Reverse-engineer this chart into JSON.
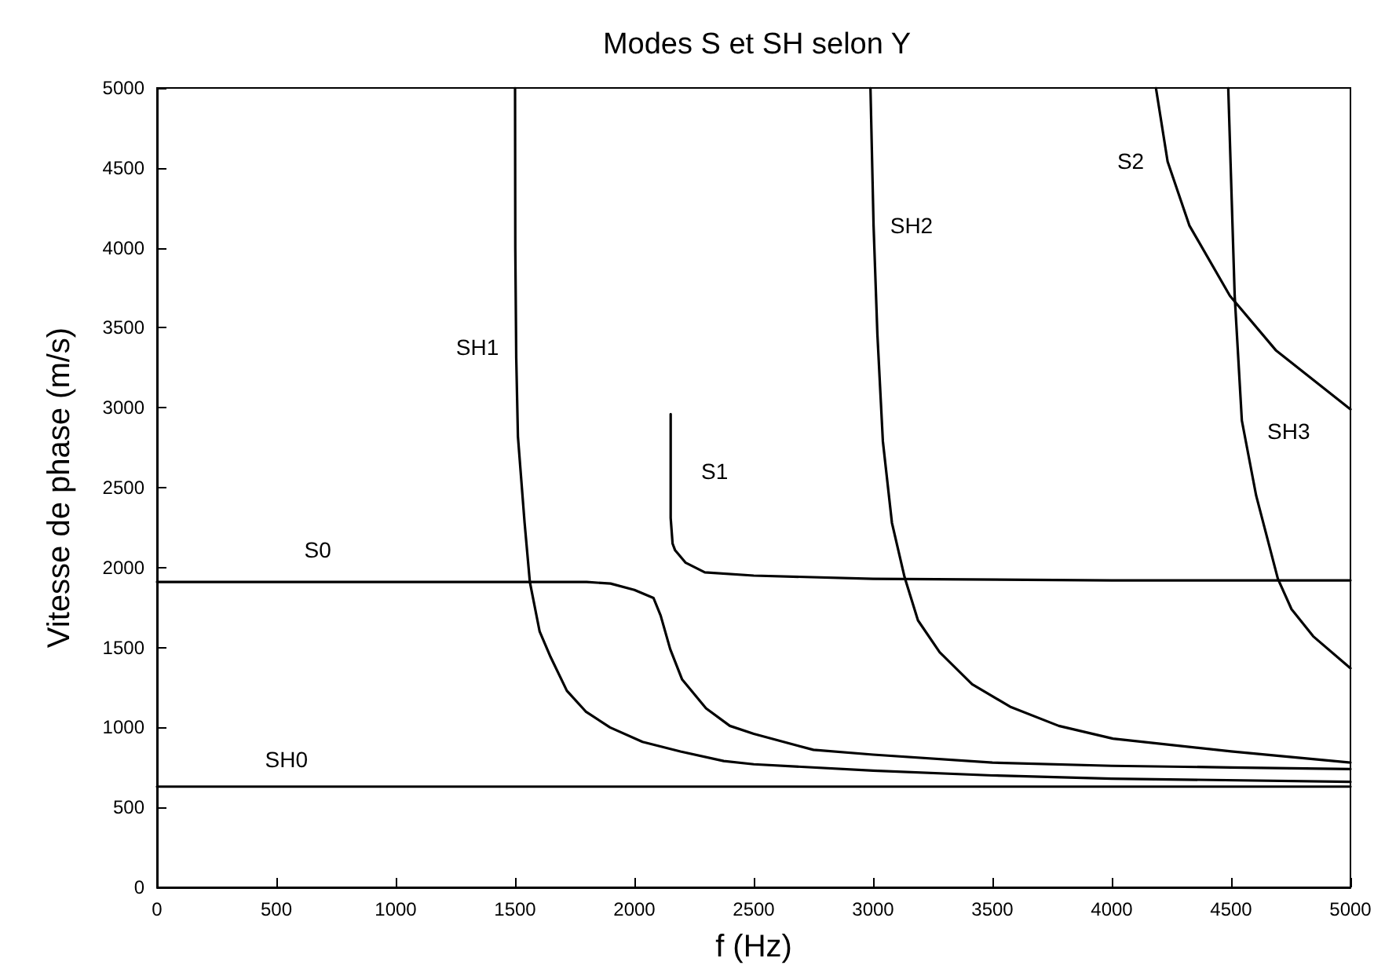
{
  "chart_data": {
    "type": "line",
    "title": "Modes S et SH selon Y",
    "xlabel": "f (Hz)",
    "ylabel": "Vitesse de phase (m/s)",
    "xlim": [
      0,
      5000
    ],
    "xticks": [
      0,
      500,
      1000,
      1500,
      2000,
      2500,
      3000,
      3500,
      4000,
      4500,
      5000
    ],
    "ylim": [
      0,
      5000
    ],
    "yticks": [
      0,
      500,
      1000,
      1500,
      2000,
      2500,
      3000,
      3500,
      4000,
      4500,
      5000
    ],
    "grid": false,
    "marker": "none",
    "line_style": "solid",
    "series": [
      {
        "name": "SH0",
        "color": "#000000",
        "x": [
          0,
          5000
        ],
        "values": [
          630,
          630
        ]
      },
      {
        "name": "S0",
        "color": "#000000",
        "x": [
          0,
          1800,
          1900,
          2000,
          2080,
          2110,
          2150,
          2200,
          2300,
          2400,
          2500,
          2750,
          3000,
          3500,
          4000,
          4500,
          5000
        ],
        "values": [
          1910,
          1910,
          1900,
          1860,
          1810,
          1700,
          1490,
          1300,
          1120,
          1010,
          960,
          860,
          830,
          780,
          760,
          750,
          740
        ]
      },
      {
        "name": "SH1",
        "color": "#000000",
        "x": [
          1500,
          1501,
          1505,
          1512,
          1540,
          1562,
          1603,
          1649,
          1717,
          1796,
          1898,
          2034,
          2193,
          2374,
          2500,
          3000,
          3500,
          4000,
          5000
        ],
        "values": [
          5000,
          4000,
          3310,
          2820,
          2280,
          1910,
          1600,
          1440,
          1230,
          1100,
          1000,
          910,
          850,
          790,
          770,
          730,
          700,
          680,
          660
        ]
      },
      {
        "name": "S1",
        "color": "#000000",
        "x": [
          2152,
          2152,
          2160,
          2170,
          2215,
          2295,
          2500,
          3000,
          4000,
          5000
        ],
        "values": [
          2960,
          2310,
          2150,
          2110,
          2030,
          1970,
          1950,
          1930,
          1920,
          1920
        ]
      },
      {
        "name": "SH2",
        "color": "#000000",
        "x": [
          2989,
          3002,
          3018,
          3041,
          3079,
          3132,
          3188,
          3279,
          3415,
          3574,
          3778,
          4005,
          4500,
          5000
        ],
        "values": [
          5000,
          4140,
          3460,
          2790,
          2280,
          1940,
          1670,
          1470,
          1270,
          1130,
          1010,
          930,
          850,
          780
        ]
      },
      {
        "name": "S2",
        "color": "#000000",
        "x": [
          4185,
          4234,
          4325,
          4495,
          4687,
          5000
        ],
        "values": [
          5000,
          4540,
          4140,
          3700,
          3360,
          2990
        ]
      },
      {
        "name": "SH3",
        "color": "#000000",
        "x": [
          4488,
          4515,
          4545,
          4605,
          4696,
          4753,
          4844,
          5000
        ],
        "values": [
          5000,
          3700,
          2920,
          2450,
          1930,
          1740,
          1570,
          1370
        ]
      }
    ]
  }
}
